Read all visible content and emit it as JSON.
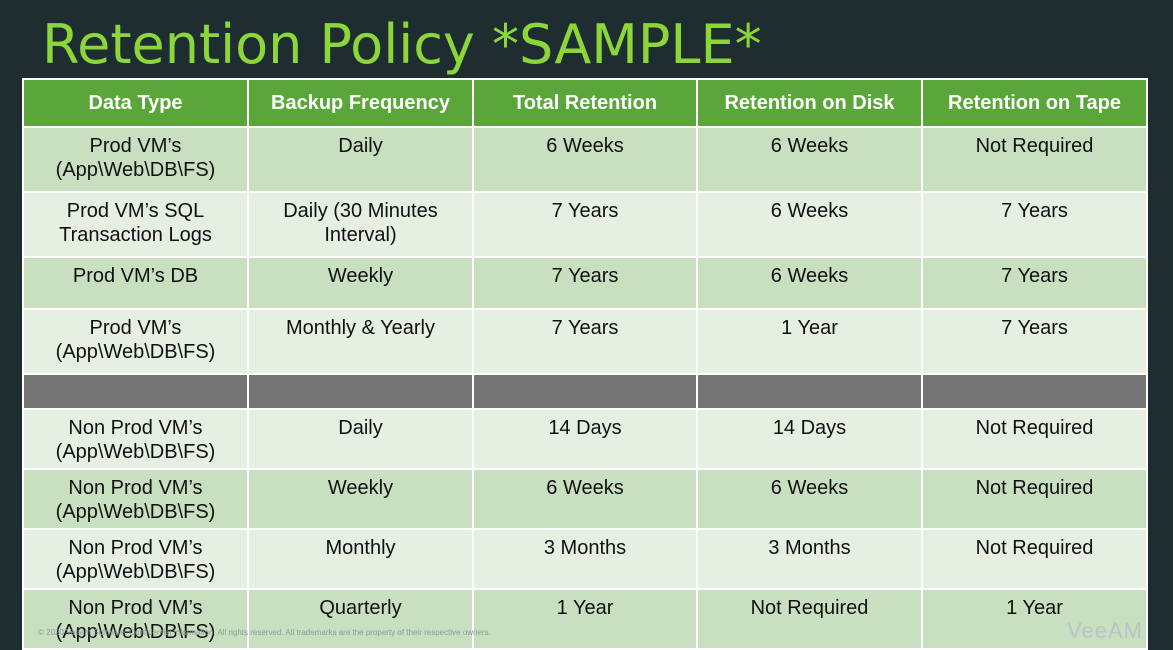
{
  "slide": {
    "title": "Retention Policy *SAMPLE*",
    "footer": "© 2020 Veeam Software. Confidential information. All rights reserved. All trademarks are the property of their respective owners.",
    "brand": "VeeAM"
  },
  "table": {
    "headers": [
      "Data Type",
      "Backup Frequency",
      "Total Retention",
      "Retention on Disk",
      "Retention on Tape"
    ],
    "prod_rows": [
      [
        "Prod VM’s (App\\Web\\DB\\FS)",
        "Daily",
        "6 Weeks",
        "6 Weeks",
        "Not Required"
      ],
      [
        "Prod VM’s SQL Transaction Logs",
        "Daily (30 Minutes Interval)",
        "7 Years",
        "6 Weeks",
        "7 Years"
      ],
      [
        "Prod VM’s DB",
        "Weekly",
        "7 Years",
        "6 Weeks",
        "7 Years"
      ],
      [
        "Prod VM’s (App\\Web\\DB\\FS)",
        "Monthly & Yearly",
        "7 Years",
        "1 Year",
        "7 Years"
      ]
    ],
    "nonprod_rows": [
      [
        "Non Prod VM’s (App\\Web\\DB\\FS)",
        "Daily",
        "14 Days",
        "14 Days",
        "Not Required"
      ],
      [
        "Non Prod VM’s (App\\Web\\DB\\FS)",
        "Weekly",
        "6 Weeks",
        "6 Weeks",
        "Not Required"
      ],
      [
        "Non Prod VM’s (App\\Web\\DB\\FS)",
        "Monthly",
        "3 Months",
        "3 Months",
        "Not Required"
      ],
      [
        "Non Prod VM’s (App\\Web\\DB\\FS)",
        "Quarterly",
        "1 Year",
        "Not Required",
        "1 Year"
      ]
    ]
  },
  "colors": {
    "title": "#8cd63a",
    "header_bg": "#5aa63a",
    "row_dark": "#c8dfc0",
    "row_light": "#e5efe2",
    "separator": "#757575",
    "background": "#1e2d30"
  }
}
